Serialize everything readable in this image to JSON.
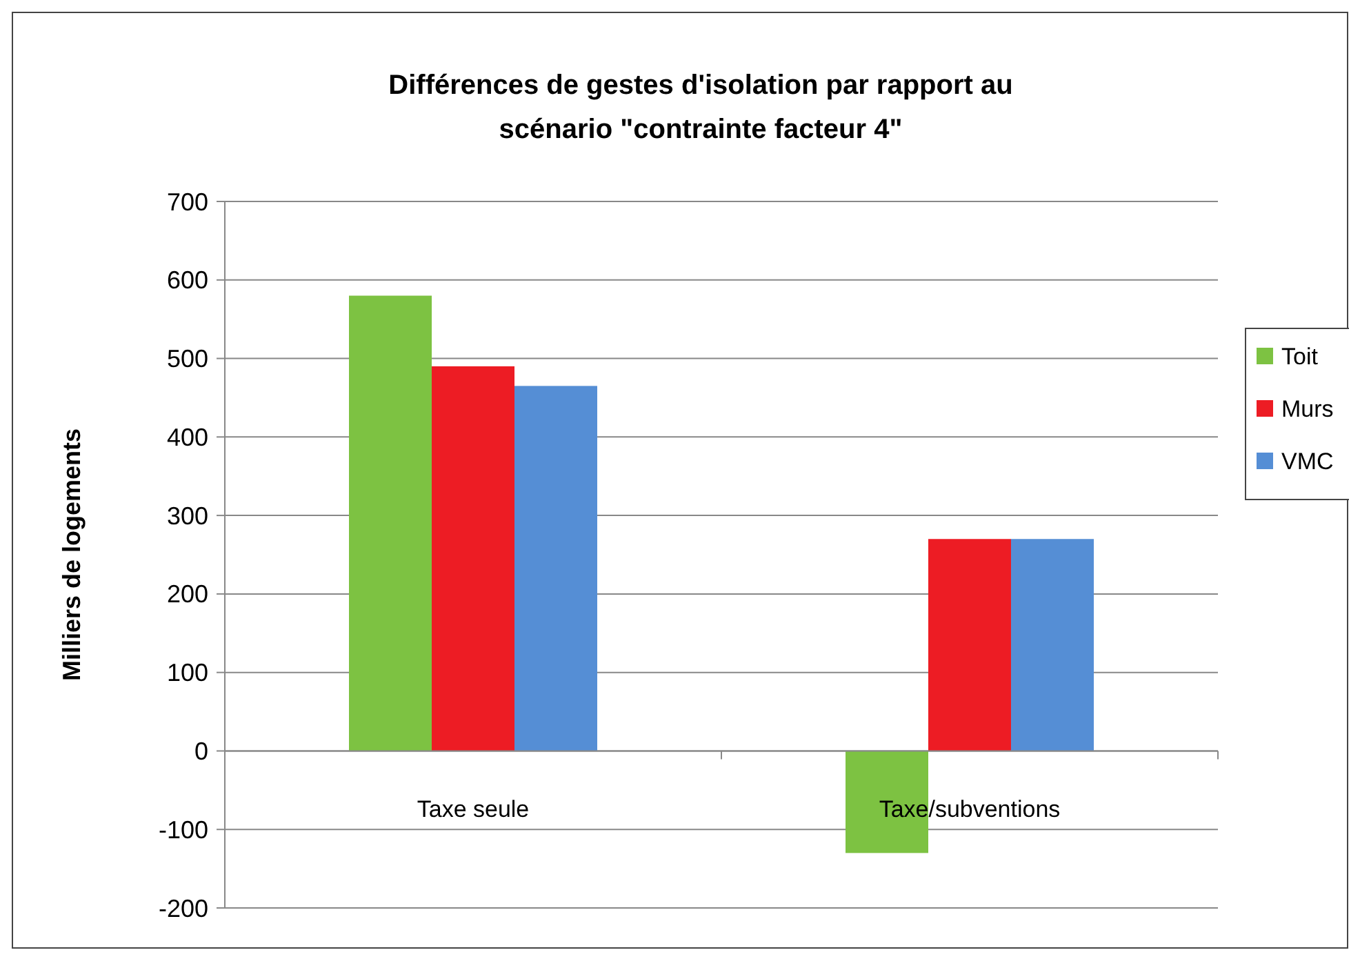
{
  "chart_data": {
    "type": "bar",
    "title": "Différences de gestes d'isolation par rapport au scénario \"contrainte facteur 4\"",
    "ylabel": "Milliers de logements",
    "categories": [
      "Taxe seule",
      "Taxe/subventions"
    ],
    "series": [
      {
        "name": "Toit",
        "color": "#7dc242",
        "values": [
          580,
          -130
        ]
      },
      {
        "name": "Murs",
        "color": "#ed1c24",
        "values": [
          490,
          270
        ]
      },
      {
        "name": "VMC",
        "color": "#558ed5",
        "values": [
          465,
          270
        ]
      }
    ],
    "ylim": [
      -200,
      700
    ],
    "yticks": [
      -200,
      -100,
      0,
      100,
      200,
      300,
      400,
      500,
      600,
      700
    ],
    "grid": "y",
    "legend": "right"
  }
}
